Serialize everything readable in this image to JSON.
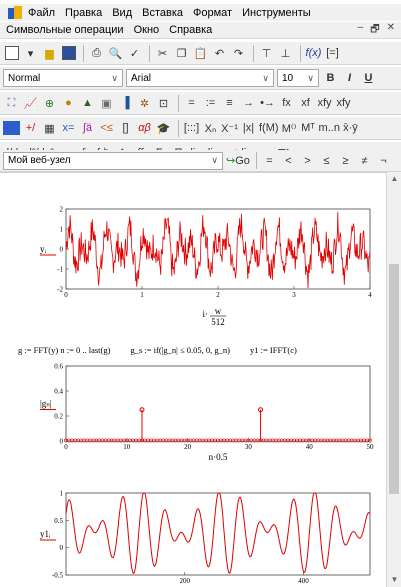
{
  "menu_main": [
    "Файл",
    "Правка",
    "Вид",
    "Вставка",
    "Формат",
    "Инструменты"
  ],
  "menu_second": [
    "Символьные операции",
    "Окно",
    "Справка"
  ],
  "window_controls": [
    "–",
    "🗗",
    "✕"
  ],
  "toolbar_format": {
    "style": "Normal",
    "font": "Arial",
    "size": "10",
    "bold": "B",
    "italic": "I",
    "underline": "U"
  },
  "toolbar_math_operators": [
    "=",
    ":=",
    "≡",
    "→",
    "•→",
    "fx",
    "xf",
    "xfy",
    "xfy"
  ],
  "toolbar_matrix": [
    "[:::]",
    "Xₙ",
    "X⁻¹",
    "|x|",
    "f(M)",
    "M⁽⁾",
    "Mᵀ",
    "m..n",
    "x̄·ȳ"
  ],
  "toolbar_calculus": [
    "d/dx",
    "d²/dx²",
    "∞",
    "∫",
    "∫ₐᵇ",
    "∮",
    "∫∫",
    "Σ",
    "Π",
    "lim",
    "lim→+",
    "lim→−",
    "∇f"
  ],
  "toolbar_nav": {
    "site": "Мой веб-узел",
    "go": "Go"
  },
  "toolbar_bool": [
    "=",
    "<",
    ">",
    "≤",
    "≥",
    "≠",
    "¬"
  ],
  "colors": {
    "trace": "#e00000",
    "axis": "#444444",
    "grid": "#e6e6e6"
  },
  "doc": {
    "formula": {
      "g_def": "g := FFT(y)  n := 0 .. last(g)",
      "gs_def": "g_s := if(|g_n| ≤ 0.05, 0, g_n)",
      "y1_def": "y1 := IFFT(c)"
    }
  },
  "chart_data": [
    {
      "type": "line",
      "ylabel": "yᵢ",
      "xlabel_num": "w",
      "xlabel_den": "512",
      "xlabel_pre": "i·",
      "xlim": [
        0,
        4
      ],
      "ylim": [
        -2,
        2
      ],
      "x_ticks": [
        "0",
        "1",
        "2",
        "3",
        "4"
      ],
      "y_ticks": [
        "2",
        "1",
        "0",
        "-1",
        "-2"
      ],
      "series": [
        {
          "description": "noisy two-tone signal",
          "amplitude_range": [
            -2,
            2
          ]
        }
      ]
    },
    {
      "type": "line",
      "ylabel": "|gₙ|",
      "xlabel": "n·0.5",
      "xlim": [
        0,
        50
      ],
      "ylim": [
        0,
        0.6
      ],
      "x_ticks": [
        "0",
        "10",
        "20",
        "30",
        "40",
        "50"
      ],
      "y_ticks": [
        "0.6",
        "0.4",
        "0.2",
        "0"
      ],
      "peaks": [
        {
          "x": 12.5,
          "y": 0.25
        },
        {
          "x": 32,
          "y": 0.25
        }
      ]
    },
    {
      "type": "line",
      "ylabel": "y1ᵢ",
      "xlim": [
        0,
        512
      ],
      "ylim": [
        -0.5,
        1
      ],
      "x_ticks": [
        "200",
        "400"
      ],
      "y_ticks": [
        "1",
        "0.5",
        "0",
        "-0.5"
      ]
    }
  ]
}
